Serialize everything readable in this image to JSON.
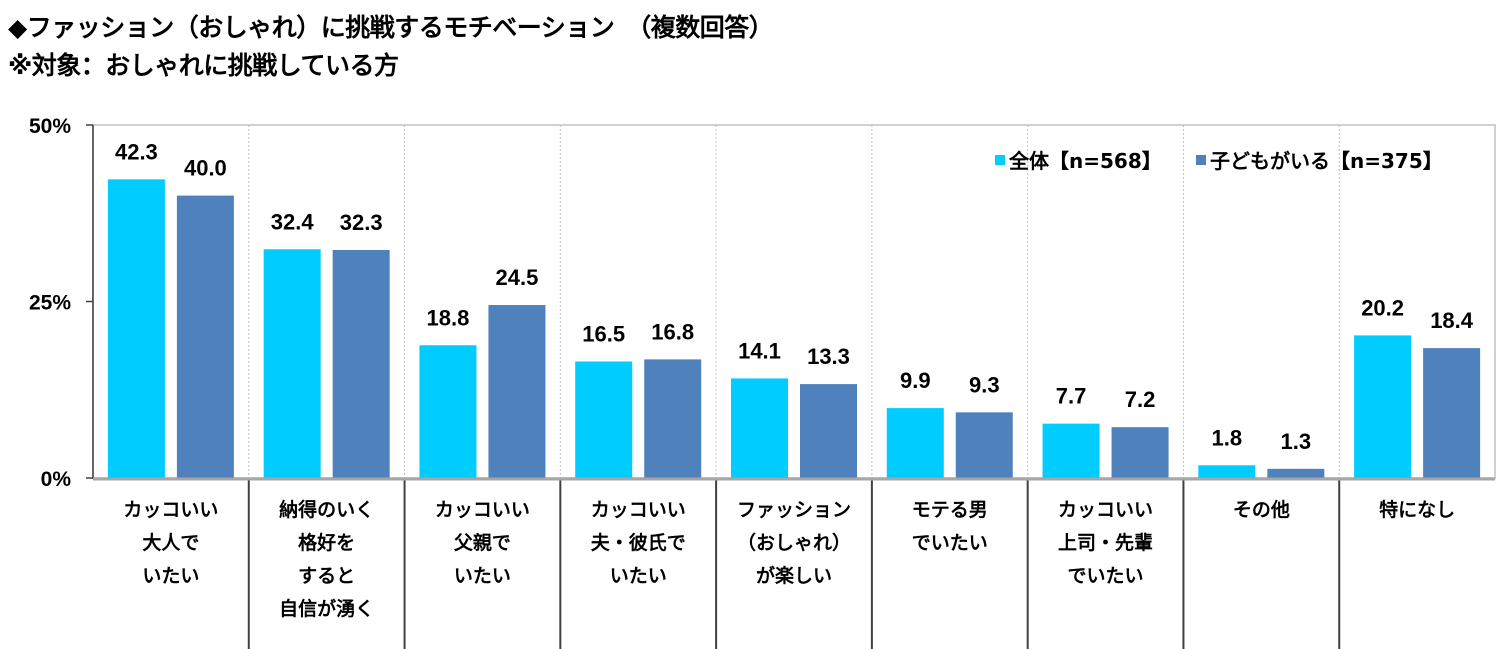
{
  "header": {
    "title": "◆ファッション（おしゃれ）に挑戦するモチベーション　（複数回答）",
    "subtitle": "※対象：おしゃれに挑戦している方"
  },
  "colors": {
    "series1": "#00CCFF",
    "series2": "#4F81BD",
    "axis": "#808080",
    "grid": "#BFBFBF"
  },
  "chart_data": {
    "type": "bar",
    "title": "ファッション（おしゃれ）に挑戦するモチベーション（複数回答）",
    "subtitle": "対象：おしゃれに挑戦している方",
    "xlabel": "",
    "ylabel": "",
    "ylim": [
      0,
      50
    ],
    "yticks": [
      0,
      25,
      50
    ],
    "ytick_labels": [
      "0%",
      "25%",
      "50%"
    ],
    "grid": "vertical dotted category separators",
    "legend_position": "top-right",
    "categories": [
      [
        "カッコいい",
        "大人で",
        "いたい"
      ],
      [
        "納得のいく",
        "格好を",
        "すると",
        "自信が湧く"
      ],
      [
        "カッコいい",
        "父親で",
        "いたい"
      ],
      [
        "カッコいい",
        "夫・彼氏で",
        "いたい"
      ],
      [
        "ファッション",
        "（おしゃれ）",
        "が楽しい"
      ],
      [
        "モテる男",
        "でいたい"
      ],
      [
        "カッコいい",
        "上司・先輩",
        "でいたい"
      ],
      [
        "その他"
      ],
      [
        "特になし"
      ]
    ],
    "series": [
      {
        "name": "全体【n=568】",
        "values": [
          42.3,
          32.4,
          18.8,
          16.5,
          14.1,
          9.9,
          7.7,
          1.8,
          20.2
        ]
      },
      {
        "name": "子どもがいる【n=375】",
        "values": [
          40.0,
          32.3,
          24.5,
          16.8,
          13.3,
          9.3,
          7.2,
          1.3,
          18.4
        ]
      }
    ]
  }
}
